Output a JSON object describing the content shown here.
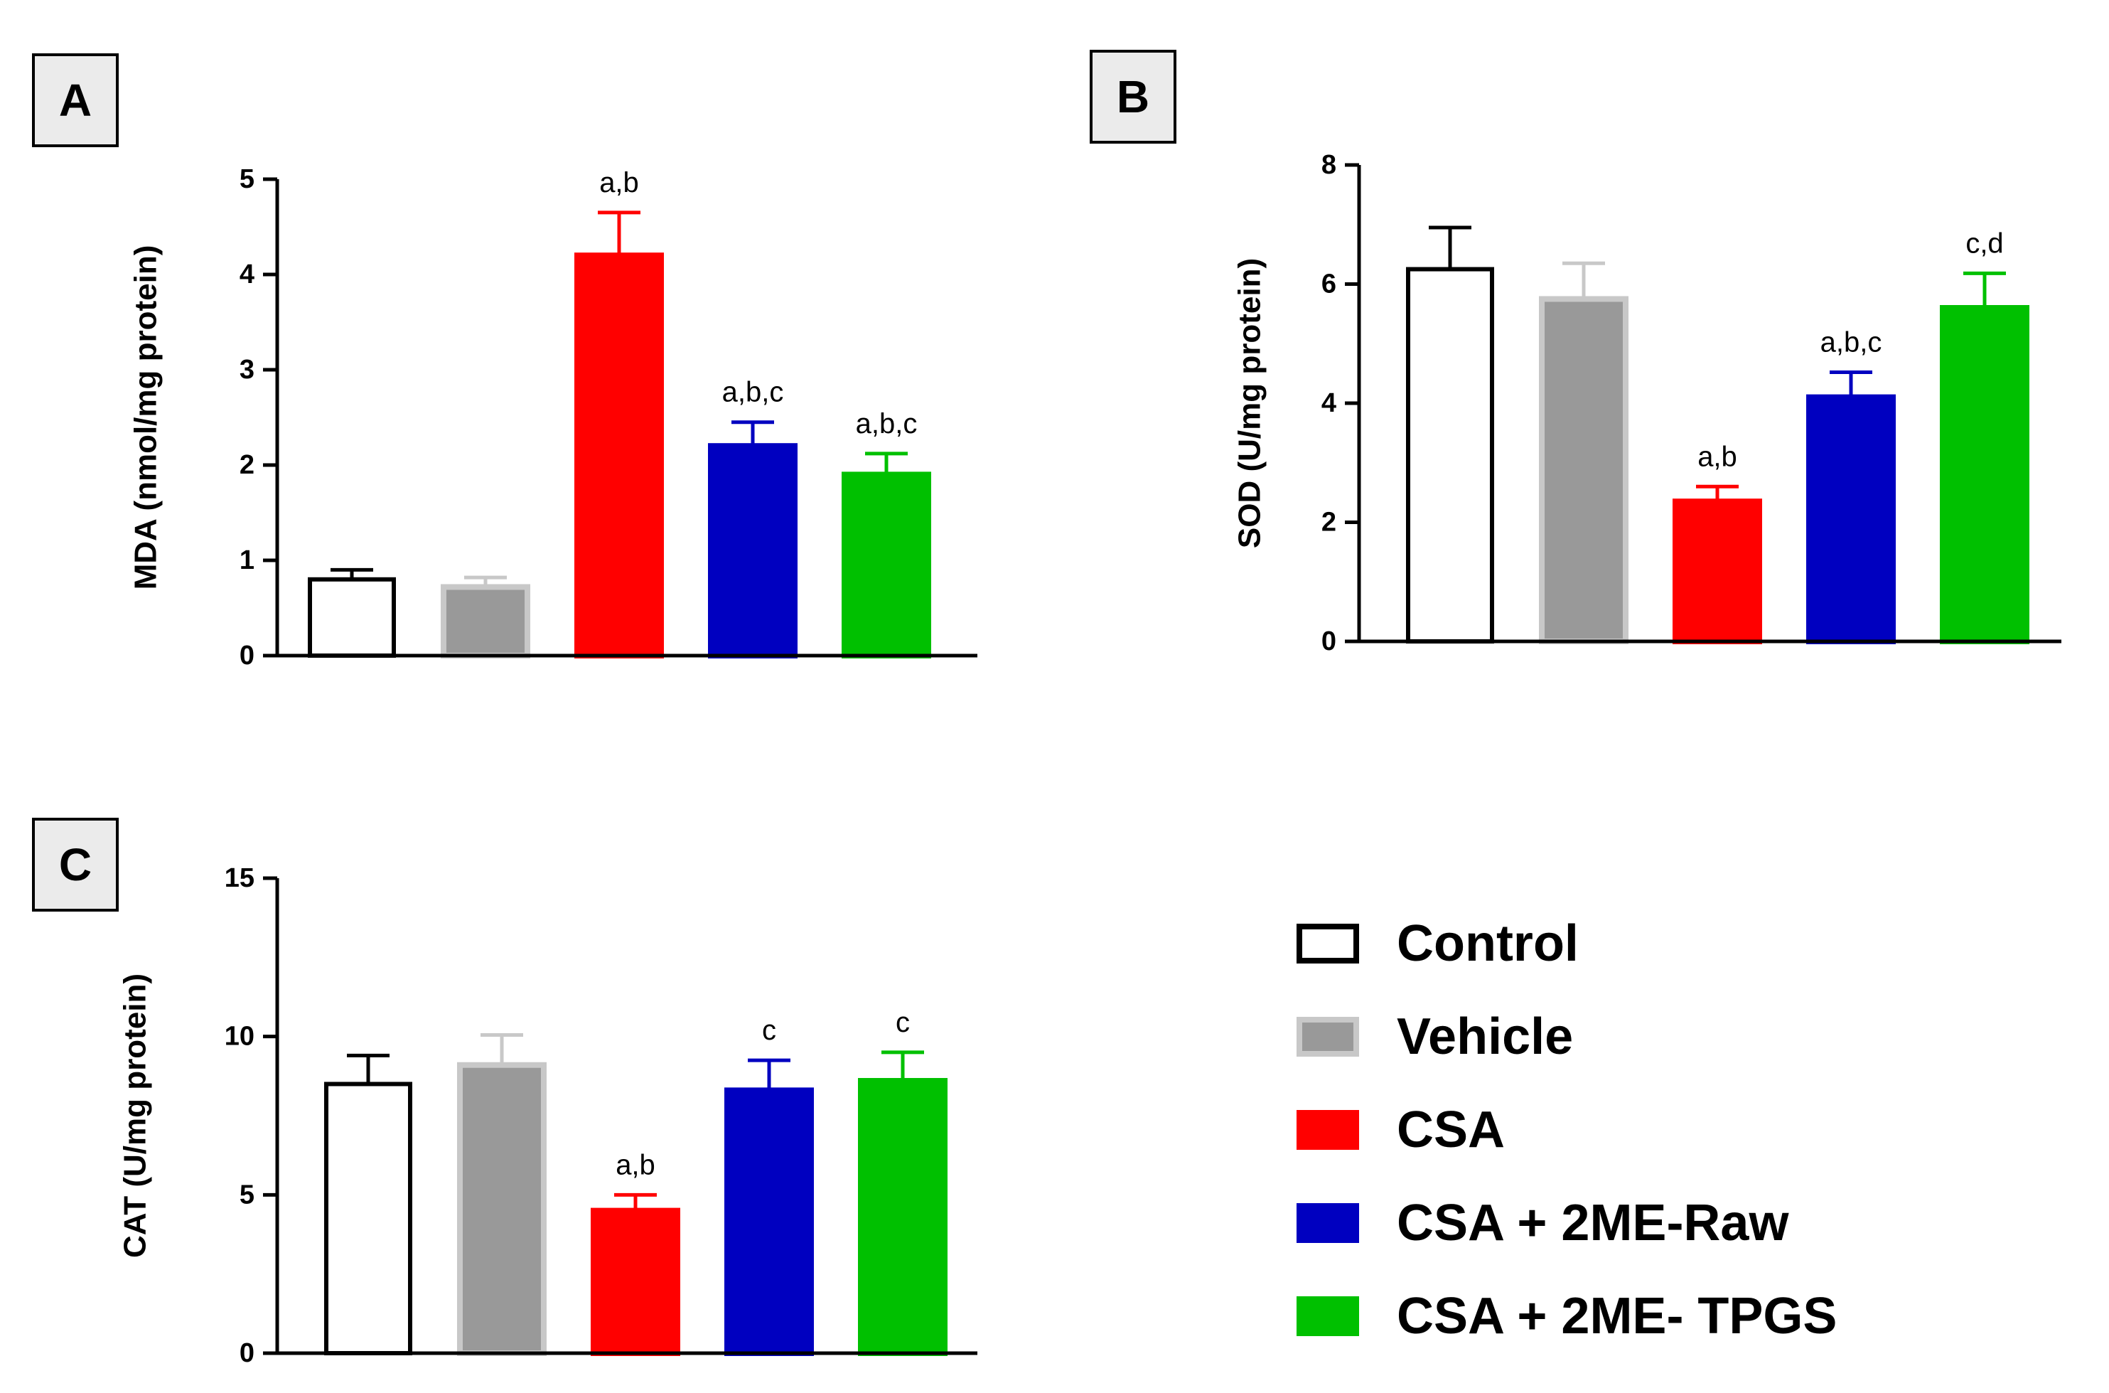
{
  "chart_data": [
    {
      "panel": "A",
      "type": "bar",
      "ylabel": "MDA (nmol/mg protein)",
      "ylim": [
        0,
        5
      ],
      "yticks": [
        0,
        1,
        2,
        3,
        4,
        5
      ],
      "categories": [
        "Control",
        "Vehicle",
        "CSA",
        "CSA + 2ME-Raw",
        "CSA + 2ME- TPGS"
      ],
      "values": [
        0.8,
        0.72,
        4.2,
        2.2,
        1.9
      ],
      "errors": [
        0.1,
        0.1,
        0.45,
        0.25,
        0.22
      ],
      "annotations": [
        "",
        "",
        "a,b",
        "a,b,c",
        "a,b,c"
      ]
    },
    {
      "panel": "B",
      "type": "bar",
      "ylabel": "SOD (U/mg protein)",
      "ylim": [
        0,
        8
      ],
      "yticks": [
        0,
        2,
        4,
        6,
        8
      ],
      "categories": [
        "Control",
        "Vehicle",
        "CSA",
        "CSA + 2ME-Raw",
        "CSA + 2ME- TPGS"
      ],
      "values": [
        6.25,
        5.75,
        2.35,
        4.1,
        5.6
      ],
      "errors": [
        0.7,
        0.6,
        0.25,
        0.42,
        0.58
      ],
      "annotations": [
        "",
        "",
        "a,b",
        "a,b,c",
        "c,d"
      ]
    },
    {
      "panel": "C",
      "type": "bar",
      "ylabel": "CAT (U/mg protein)",
      "ylim": [
        0,
        15
      ],
      "yticks": [
        0,
        5,
        10,
        15
      ],
      "categories": [
        "Control",
        "Vehicle",
        "CSA",
        "CSA + 2ME-Raw",
        "CSA + 2ME- TPGS"
      ],
      "values": [
        8.5,
        9.1,
        4.5,
        8.3,
        8.6
      ],
      "errors": [
        0.9,
        0.95,
        0.5,
        0.95,
        0.9
      ],
      "annotations": [
        "",
        "",
        "a,b",
        "c",
        "c"
      ]
    }
  ],
  "legend": {
    "items": [
      {
        "label": "Control",
        "fill": "#ffffff",
        "stroke": "#000000"
      },
      {
        "label": "Vehicle",
        "fill": "#999999",
        "stroke": "#c8c8c8"
      },
      {
        "label": "CSA",
        "fill": "#ff0000",
        "stroke": "#ff0000"
      },
      {
        "label": "CSA + 2ME-Raw",
        "fill": "#0000c0",
        "stroke": "#0000c0"
      },
      {
        "label": "CSA + 2ME- TPGS",
        "fill": "#00c000",
        "stroke": "#00c000"
      }
    ]
  },
  "colors": {
    "bar_fill": [
      "#ffffff",
      "#999999",
      "#ff0000",
      "#0000c0",
      "#00c000"
    ],
    "bar_stroke": [
      "#000000",
      "#c8c8c8",
      "#ff0000",
      "#0000c0",
      "#00c000"
    ],
    "error_color": [
      "#000000",
      "#c8c8c8",
      "#ff0000",
      "#0000c0",
      "#00c000"
    ],
    "axis": "#000000",
    "panel_label_bg": "#ebebeb"
  }
}
